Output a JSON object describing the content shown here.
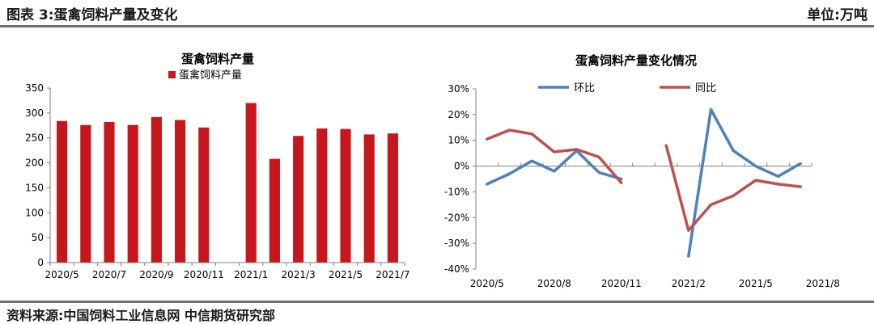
{
  "header": {
    "title": "图表 3:蛋禽饲料产量及变化",
    "unit": "单位:万吨"
  },
  "footer": {
    "source": "资料来源:中国饲料工业信息网 中信期货研究部"
  },
  "colors": {
    "bar": "#c8161d",
    "mom": "#4f81bd",
    "yoy": "#c0504d"
  },
  "chart_data": [
    {
      "type": "bar",
      "title": "蛋禽饲料产量",
      "legend": [
        "蛋禽饲料产量"
      ],
      "series": [
        {
          "name": "蛋禽饲料产量",
          "values": [
            284,
            276,
            282,
            276,
            292,
            286,
            271,
            null,
            320,
            208,
            254,
            269,
            268,
            257,
            259
          ]
        }
      ],
      "x_labels": [
        "2020/5",
        "2020/7",
        "2020/9",
        "2020/11",
        "2021/1",
        "2021/3",
        "2021/5",
        "2021/7"
      ],
      "ylim": [
        0,
        350
      ],
      "yticks": [
        "0",
        "50",
        "100",
        "150",
        "200",
        "250",
        "300",
        "350"
      ]
    },
    {
      "type": "line",
      "title": "蛋禽饲料产量变化情况",
      "legend_position": "top",
      "series": [
        {
          "name": "环比",
          "values": [
            -7,
            -3,
            2,
            -2,
            6,
            -2.5,
            -5,
            null,
            null,
            -35,
            22,
            6,
            0,
            -4,
            1
          ]
        },
        {
          "name": "同比",
          "values": [
            10.5,
            14,
            12.5,
            5.5,
            6.5,
            3.5,
            -6.5,
            null,
            8,
            -25,
            -15,
            -11.5,
            -5.5,
            -7,
            -8
          ]
        }
      ],
      "x_labels": [
        "2020/5",
        "2020/8",
        "2020/11",
        "2021/2",
        "2021/5",
        "2021/8"
      ],
      "ylim": [
        -40,
        30
      ],
      "yticks": [
        "-40%",
        "-30%",
        "-20%",
        "-10%",
        "0%",
        "10%",
        "20%",
        "30%"
      ]
    }
  ]
}
